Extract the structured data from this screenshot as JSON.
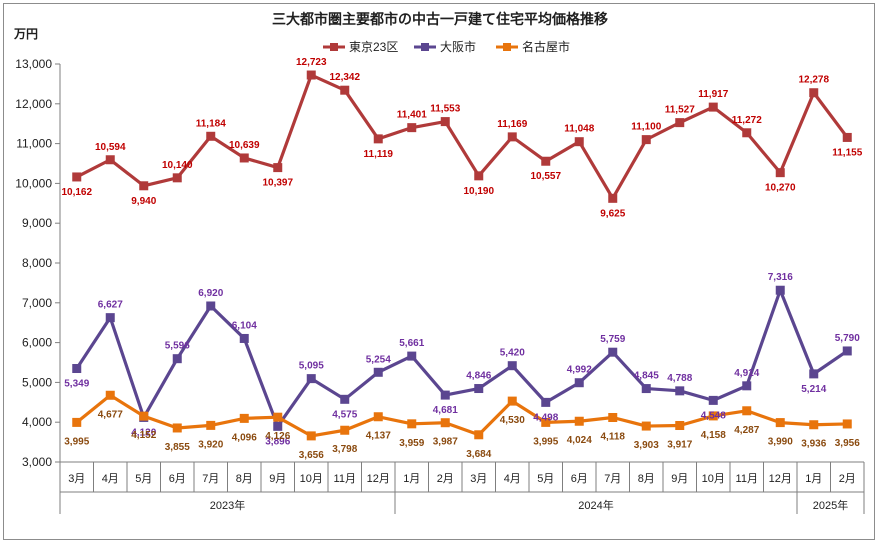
{
  "chart_data": {
    "type": "line",
    "title": "三大都市圏主要都市の中古一戸建て住宅平均価格推移",
    "ylabel": "万円",
    "ylim": [
      3000,
      13000
    ],
    "yticks": [
      "3,000",
      "4,000",
      "5,000",
      "6,000",
      "7,000",
      "8,000",
      "9,000",
      "10,000",
      "11,000",
      "12,000",
      "13,000"
    ],
    "categories": [
      "3月",
      "4月",
      "5月",
      "6月",
      "7月",
      "8月",
      "9月",
      "10月",
      "11月",
      "12月",
      "1月",
      "2月",
      "3月",
      "4月",
      "5月",
      "6月",
      "7月",
      "8月",
      "9月",
      "10月",
      "11月",
      "12月",
      "1月",
      "2月"
    ],
    "years": [
      {
        "label": "2023年",
        "start": 0,
        "end": 9
      },
      {
        "label": "2024年",
        "start": 10,
        "end": 21
      },
      {
        "label": "2025年",
        "start": 22,
        "end": 23
      }
    ],
    "grid": false,
    "legend_position": "top",
    "series": [
      {
        "name": "東京23区",
        "color": "#b03a3a",
        "label_color": "#c00000",
        "values": [
          10162,
          10594,
          9940,
          10140,
          11184,
          10639,
          10397,
          12723,
          12342,
          11119,
          11401,
          11553,
          10190,
          11169,
          10557,
          11048,
          9625,
          11100,
          11527,
          11917,
          11272,
          10270,
          12278,
          11155
        ],
        "labels": [
          "10,162",
          "10,594",
          "9,940",
          "10,140",
          "11,184",
          "10,639",
          "10,397",
          "12,723",
          "12,342",
          "11,119",
          "11,401",
          "11,553",
          "10,190",
          "11,169",
          "10,557",
          "11,048",
          "9,625",
          "11,100",
          "11,527",
          "11,917",
          "11,272",
          "10,270",
          "12,278",
          "11,155"
        ]
      },
      {
        "name": "大阪市",
        "color": "#5b4690",
        "label_color": "#7030a0",
        "values": [
          5349,
          6627,
          4120,
          5596,
          6920,
          6104,
          3896,
          5095,
          4575,
          5254,
          5661,
          4681,
          4846,
          5420,
          4498,
          4992,
          5759,
          4845,
          4788,
          4548,
          4914,
          7316,
          5214,
          5790
        ],
        "labels": [
          "5,349",
          "6,627",
          "4,120",
          "5,596",
          "6,920",
          "6,104",
          "3,896",
          "5,095",
          "4,575",
          "5,254",
          "5,661",
          "4,681",
          "4,846",
          "5,420",
          "4,498",
          "4,992",
          "5,759",
          "4,845",
          "4,788",
          "4,548",
          "4,914",
          "7,316",
          "5,214",
          "5,790"
        ]
      },
      {
        "name": "名古屋市",
        "color": "#e8740c",
        "label_color": "#8a4a0f",
        "values": [
          3995,
          4677,
          4152,
          3855,
          3920,
          4096,
          4126,
          3656,
          3798,
          4137,
          3959,
          3987,
          3684,
          4530,
          3995,
          4024,
          4118,
          3903,
          3917,
          4158,
          4287,
          3990,
          3936,
          3956
        ],
        "labels": [
          "3,995",
          "4,677",
          "4,152",
          "3,855",
          "3,920",
          "4,096",
          "4,126",
          "3,656",
          "3,798",
          "4,137",
          "3,959",
          "3,987",
          "3,684",
          "4,530",
          "3,995",
          "4,024",
          "4,118",
          "3,903",
          "3,917",
          "4,158",
          "4,287",
          "3,990",
          "3,936",
          "3,956"
        ]
      }
    ]
  }
}
